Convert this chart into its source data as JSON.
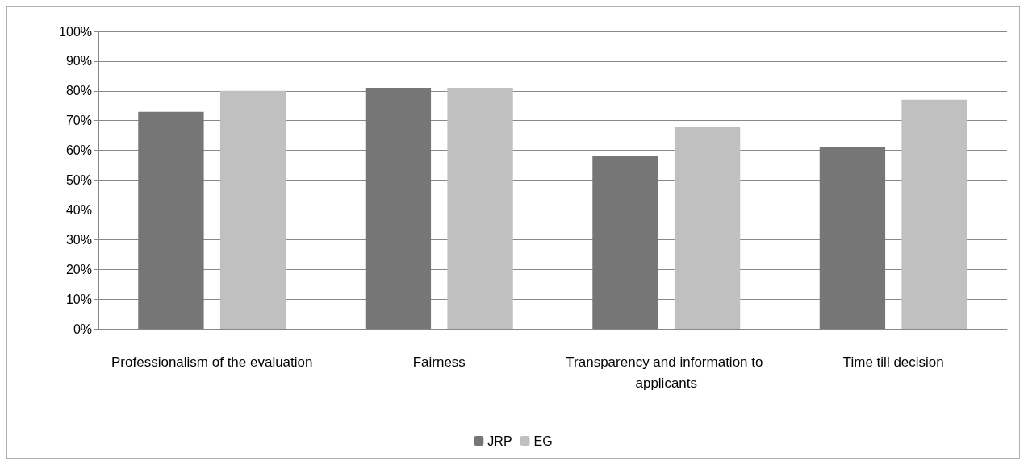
{
  "chart_data": {
    "type": "bar",
    "categories": [
      "Professionalism of the evaluation",
      "Fairness",
      "Transparency and information to applicants",
      "Time till decision"
    ],
    "series": [
      {
        "name": "JRP",
        "color": "#767676",
        "values": [
          73,
          81,
          58,
          61
        ]
      },
      {
        "name": "EG",
        "color": "#c0c0c0",
        "values": [
          80,
          81,
          68,
          77
        ]
      }
    ],
    "ylim": [
      0,
      100
    ],
    "yticks": [
      {
        "value": 0,
        "label": "0%"
      },
      {
        "value": 10,
        "label": "10%"
      },
      {
        "value": 20,
        "label": "20%"
      },
      {
        "value": 30,
        "label": "30%"
      },
      {
        "value": 40,
        "label": "40%"
      },
      {
        "value": 50,
        "label": "50%"
      },
      {
        "value": 60,
        "label": "60%"
      },
      {
        "value": 70,
        "label": "70%"
      },
      {
        "value": 80,
        "label": "80%"
      },
      {
        "value": 90,
        "label": "90%"
      },
      {
        "value": 100,
        "label": "100%"
      }
    ],
    "grid": "y",
    "legend": "bottom"
  }
}
